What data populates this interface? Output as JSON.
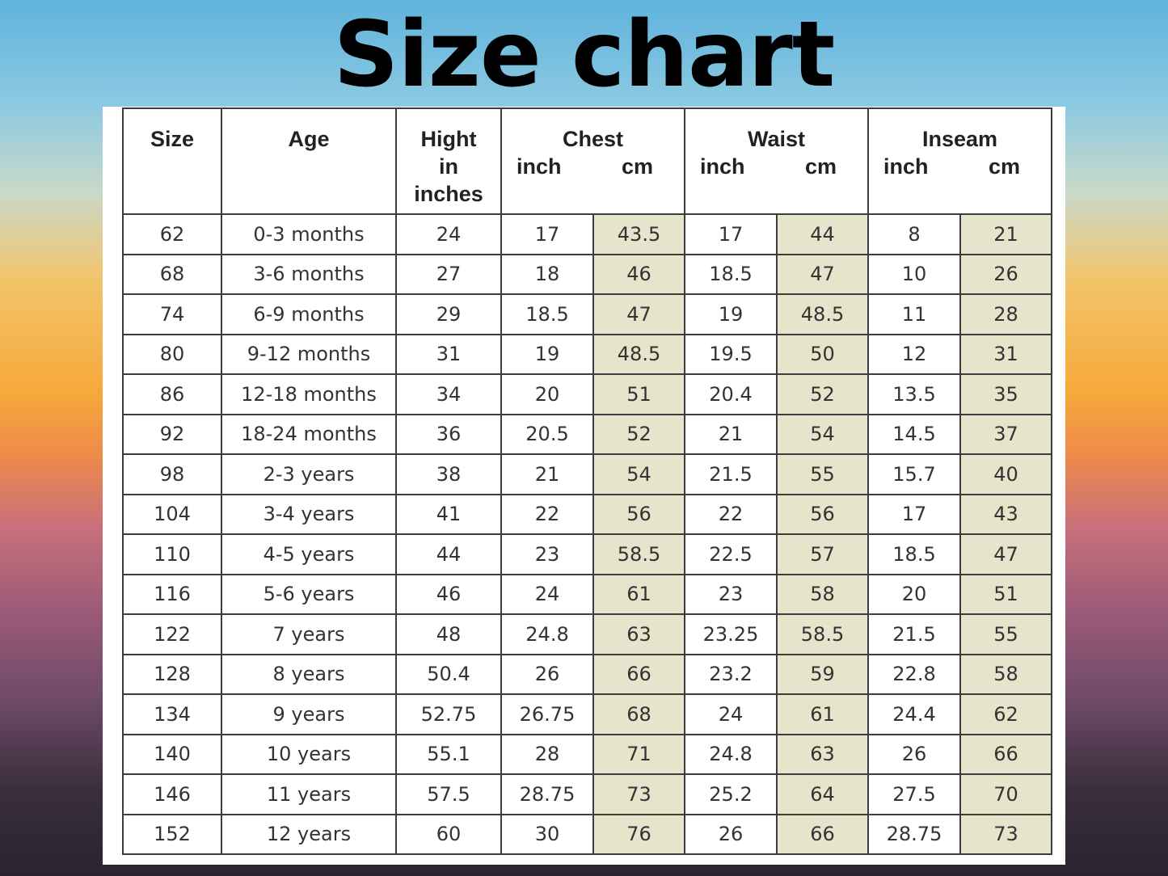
{
  "title": "Size chart",
  "colors": {
    "cm_cell_bg": "#e6e4cb",
    "border": "#3c3c3c"
  },
  "table": {
    "headers": {
      "size": "Size",
      "age": "Age",
      "height": [
        "Hight",
        "in",
        "inches"
      ],
      "chest": {
        "label": "Chest",
        "inch": "inch",
        "cm": "cm"
      },
      "waist": {
        "label": "Waist",
        "inch": "inch",
        "cm": "cm"
      },
      "inseam": {
        "label": "Inseam",
        "inch": "inch",
        "cm": "cm"
      }
    },
    "rows": [
      [
        "62",
        "0-3 months",
        "24",
        "17",
        "43.5",
        "17",
        "44",
        "8",
        "21"
      ],
      [
        "68",
        "3-6 months",
        "27",
        "18",
        "46",
        "18.5",
        "47",
        "10",
        "26"
      ],
      [
        "74",
        "6-9 months",
        "29",
        "18.5",
        "47",
        "19",
        "48.5",
        "11",
        "28"
      ],
      [
        "80",
        "9-12 months",
        "31",
        "19",
        "48.5",
        "19.5",
        "50",
        "12",
        "31"
      ],
      [
        "86",
        "12-18 months",
        "34",
        "20",
        "51",
        "20.4",
        "52",
        "13.5",
        "35"
      ],
      [
        "92",
        "18-24 months",
        "36",
        "20.5",
        "52",
        "21",
        "54",
        "14.5",
        "37"
      ],
      [
        "98",
        "2-3 years",
        "38",
        "21",
        "54",
        "21.5",
        "55",
        "15.7",
        "40"
      ],
      [
        "104",
        "3-4 years",
        "41",
        "22",
        "56",
        "22",
        "56",
        "17",
        "43"
      ],
      [
        "110",
        "4-5 years",
        "44",
        "23",
        "58.5",
        "22.5",
        "57",
        "18.5",
        "47"
      ],
      [
        "116",
        "5-6 years",
        "46",
        "24",
        "61",
        "23",
        "58",
        "20",
        "51"
      ],
      [
        "122",
        "7 years",
        "48",
        "24.8",
        "63",
        "23.25",
        "58.5",
        "21.5",
        "55"
      ],
      [
        "128",
        "8 years",
        "50.4",
        "26",
        "66",
        "23.2",
        "59",
        "22.8",
        "58"
      ],
      [
        "134",
        "9 years",
        "52.75",
        "26.75",
        "68",
        "24",
        "61",
        "24.4",
        "62"
      ],
      [
        "140",
        "10 years",
        "55.1",
        "28",
        "71",
        "24.8",
        "63",
        "26",
        "66"
      ],
      [
        "146",
        "11 years",
        "57.5",
        "28.75",
        "73",
        "25.2",
        "64",
        "27.5",
        "70"
      ],
      [
        "152",
        "12 years",
        "60",
        "30",
        "76",
        "26",
        "66",
        "28.75",
        "73"
      ]
    ]
  }
}
